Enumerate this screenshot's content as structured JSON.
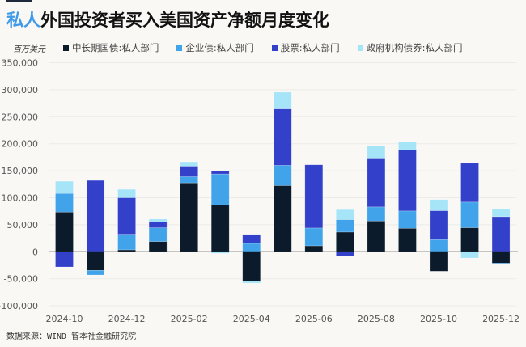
{
  "title": {
    "highlight": "私人",
    "rest": "外国投资者买入美国资产净额月度变化"
  },
  "unit": "百万美元",
  "source": "数据来源：WIND 智本社金融研究院",
  "colors": {
    "accent": "#3f9ae8"
  },
  "chart_data": {
    "type": "bar",
    "stacked": true,
    "categories": [
      "2024-10",
      "2024-11",
      "2024-12",
      "2025-01",
      "2025-02",
      "2025-03",
      "2025-04",
      "2025-05",
      "2025-06",
      "2025-07",
      "2025-08",
      "2025-09",
      "2025-10",
      "2025-11",
      "2025-12"
    ],
    "x_tick_labels": [
      "2024-10",
      "2024-12",
      "2025-02",
      "2025-04",
      "2025-06",
      "2025-08",
      "2025-10",
      "2025-12"
    ],
    "y_tick_labels": [
      "350,000",
      "300,000",
      "250,000",
      "200,000",
      "150,000",
      "100,000",
      "50,000",
      "0",
      "-50,000",
      "-100,000"
    ],
    "ylim": [
      -100000,
      350000
    ],
    "grid": true,
    "legend_placement": "top",
    "series": [
      {
        "name": "中长期国债:私人部门",
        "color": "#0b1b2b",
        "values": [
          73500,
          -34500,
          3500,
          19000,
          127500,
          87000,
          -54000,
          122500,
          11000,
          36500,
          57000,
          43500,
          -36000,
          44500,
          -21000
        ]
      },
      {
        "name": "企业债:私人部门",
        "color": "#41a3ea",
        "values": [
          34500,
          -8500,
          29000,
          25500,
          11500,
          57000,
          15500,
          37500,
          33000,
          23000,
          26000,
          32000,
          22500,
          47500,
          -2500
        ]
      },
      {
        "name": "股票:私人部门",
        "color": "#3340c9",
        "values": [
          -28000,
          132000,
          67500,
          11000,
          19500,
          6000,
          16500,
          104500,
          117000,
          -8000,
          90500,
          113000,
          53500,
          72000,
          65000
        ]
      },
      {
        "name": "政府机构债券:私人部门",
        "color": "#a6e4f7",
        "values": [
          22500,
          0,
          15500,
          5000,
          8000,
          -3000,
          -4000,
          31000,
          0,
          18500,
          22000,
          15000,
          20500,
          -11500,
          13500
        ]
      }
    ]
  }
}
